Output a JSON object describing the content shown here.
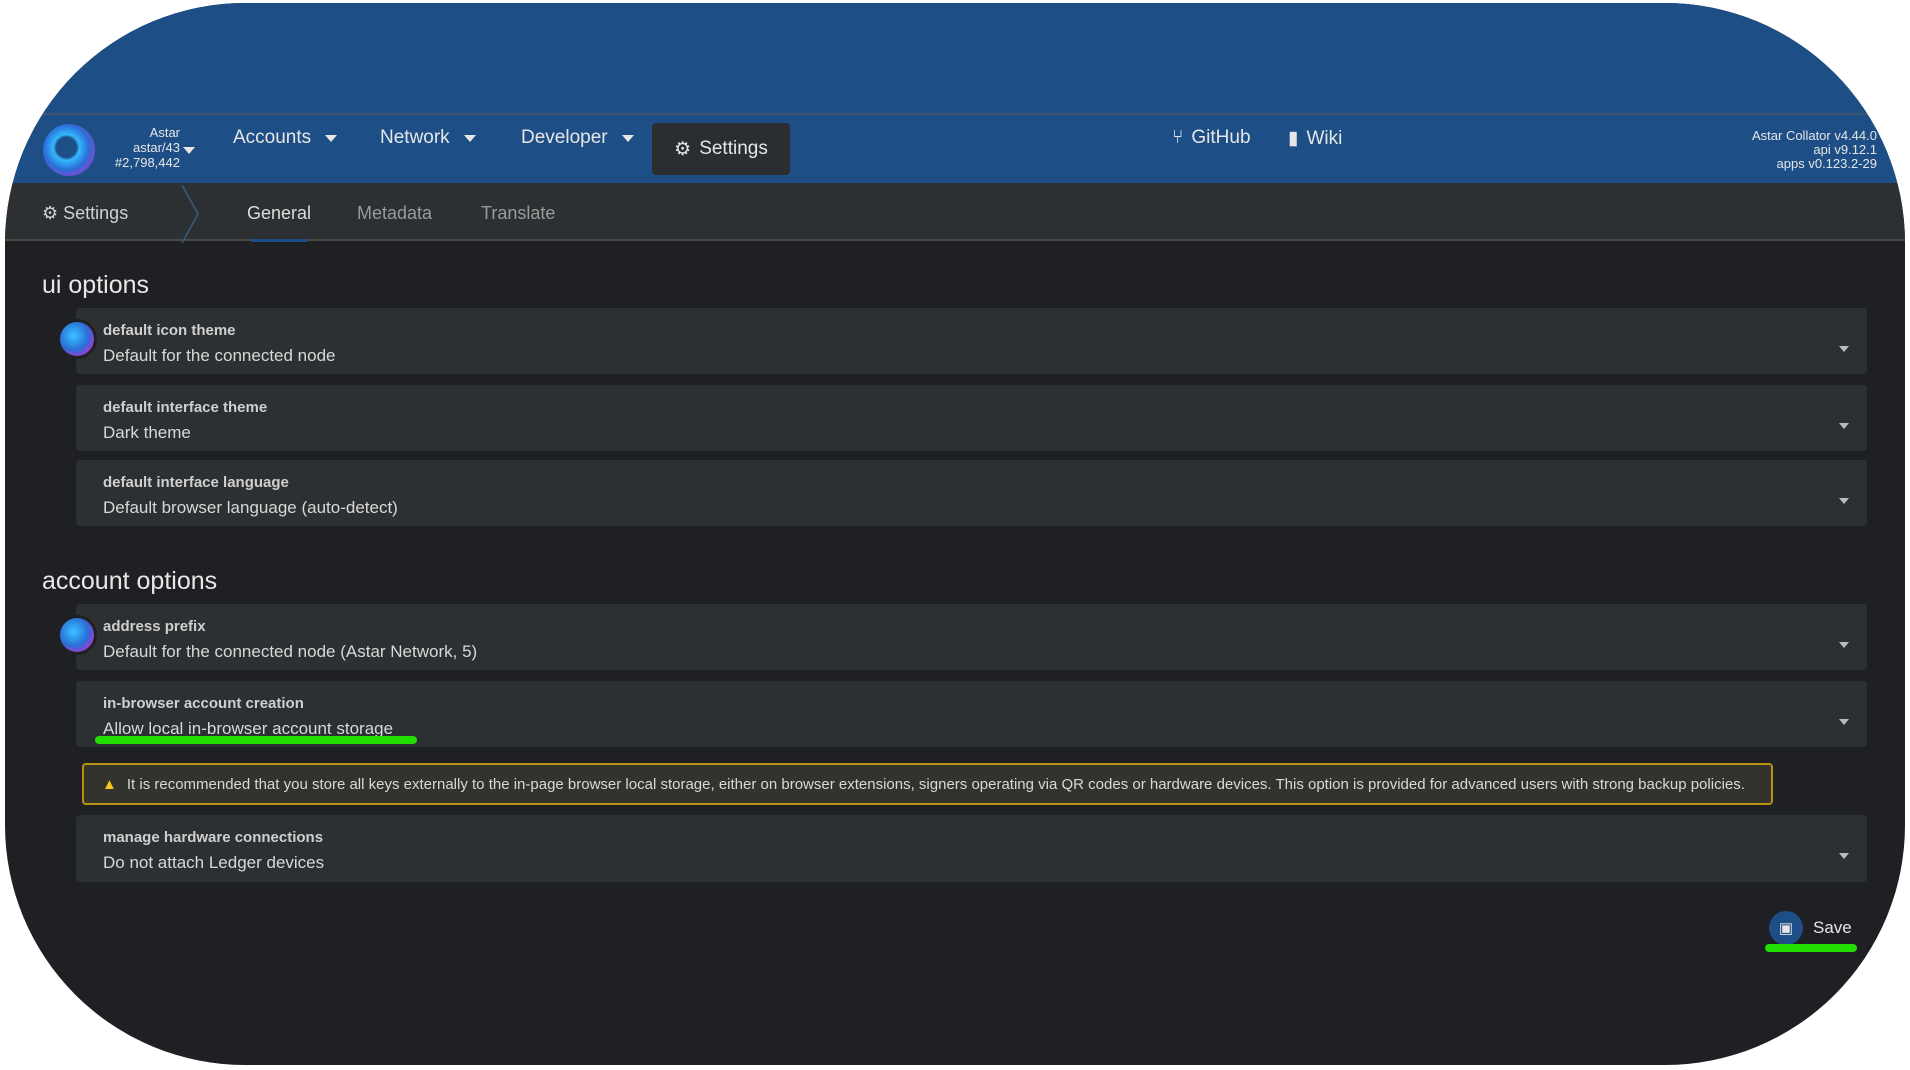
{
  "header": {
    "chain": {
      "name": "Astar",
      "spec": "astar/43",
      "block": "#2,798,442"
    },
    "menu": [
      {
        "label": "Accounts"
      },
      {
        "label": "Network"
      },
      {
        "label": "Developer"
      }
    ],
    "settings_label": "Settings",
    "links": [
      {
        "label": "GitHub",
        "icon": "branch-icon"
      },
      {
        "label": "Wiki",
        "icon": "book-icon"
      }
    ],
    "versions": [
      "Astar Collator v4.44.0",
      "api v9.12.1",
      "apps v0.123.2-29"
    ],
    "color": "#1d4f86"
  },
  "tabs": {
    "section": "Settings",
    "items": [
      {
        "label": "General",
        "active": true
      },
      {
        "label": "Metadata"
      },
      {
        "label": "Translate"
      }
    ]
  },
  "ui_options": {
    "title": "ui options",
    "fields": [
      {
        "label": "default icon theme",
        "value": "Default for the connected node"
      },
      {
        "label": "default interface theme",
        "value": "Dark theme"
      },
      {
        "label": "default interface language",
        "value": "Default browser language (auto-detect)"
      }
    ]
  },
  "account_options": {
    "title": "account options",
    "fields": [
      {
        "label": "address prefix",
        "value": "Default for the connected node (Astar Network, 5)"
      },
      {
        "label": "in-browser account creation",
        "value": "Allow local in-browser account storage"
      },
      {
        "label": "manage hardware connections",
        "value": "Do not attach Ledger devices"
      }
    ],
    "warning": "It is recommended that you store all keys externally to the in-page browser local storage, either on browser extensions, signers operating via QR codes or hardware devices. This option is provided for advanced users with strong backup policies."
  },
  "save_label": "Save",
  "highlight_color": "#22dd00"
}
